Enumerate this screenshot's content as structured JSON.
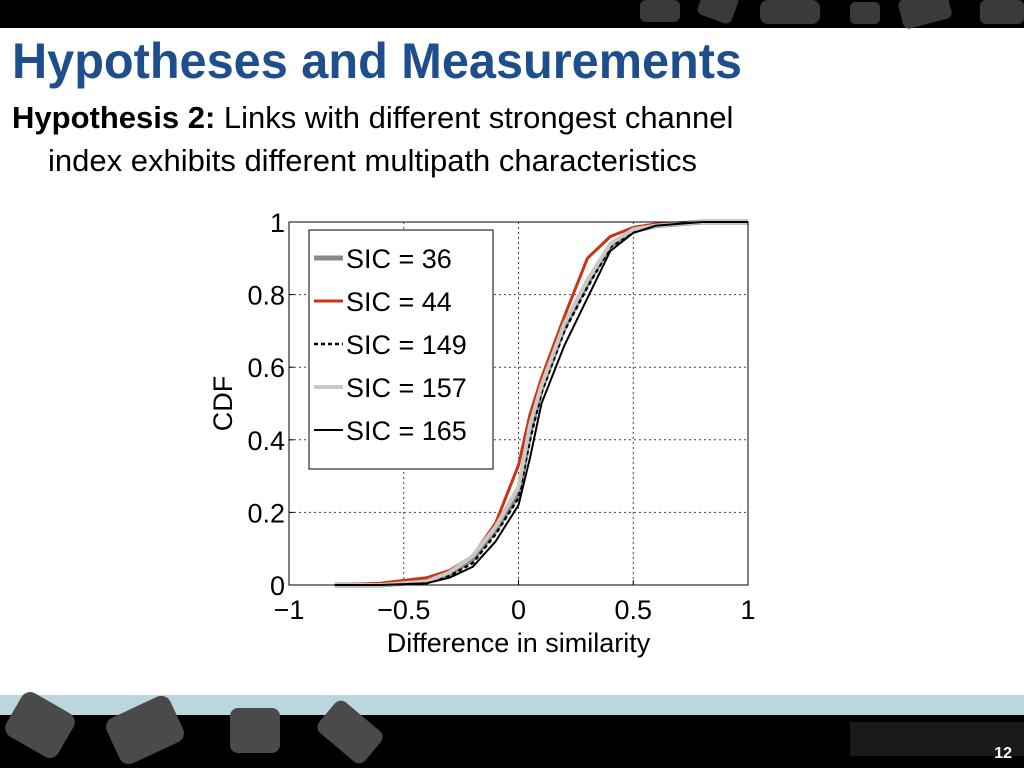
{
  "title": "Hypotheses and Measurements",
  "body": {
    "label": "Hypothesis 2:",
    "lines": [
      "Links with different strongest channel",
      "index exhibits different multipath characteristics"
    ]
  },
  "chart_data": {
    "type": "line",
    "xlabel": "Difference in similarity",
    "ylabel": "CDF",
    "x": [
      -0.8,
      -0.6,
      -0.4,
      -0.3,
      -0.2,
      -0.1,
      0,
      0.05,
      0.1,
      0.2,
      0.3,
      0.4,
      0.5,
      0.6,
      0.8,
      1.0
    ],
    "series": [
      {
        "name": "SIC = 36",
        "color": "#8a8a8a",
        "width": 5,
        "values": [
          0,
          0,
          0.01,
          0.03,
          0.07,
          0.15,
          0.25,
          0.42,
          0.54,
          0.71,
          0.83,
          0.935,
          0.975,
          0.99,
          1,
          1
        ]
      },
      {
        "name": "SIC = 44",
        "color": "#cc3311",
        "width": 3,
        "values": [
          0,
          0.005,
          0.02,
          0.04,
          0.08,
          0.17,
          0.33,
          0.47,
          0.57,
          0.74,
          0.9,
          0.96,
          0.985,
          0.995,
          1,
          1
        ]
      },
      {
        "name": "SIC = 149",
        "color": "#000000",
        "width": 2.5,
        "dash": true,
        "values": [
          0,
          0,
          0.005,
          0.025,
          0.06,
          0.14,
          0.24,
          0.4,
          0.53,
          0.7,
          0.82,
          0.93,
          0.975,
          0.99,
          1,
          1
        ]
      },
      {
        "name": "SIC = 157",
        "color": "#c8c8c8",
        "width": 4,
        "values": [
          0,
          0,
          0.01,
          0.035,
          0.08,
          0.16,
          0.27,
          0.44,
          0.55,
          0.72,
          0.84,
          0.94,
          0.98,
          0.99,
          1,
          1
        ]
      },
      {
        "name": "SIC = 165",
        "color": "#000000",
        "width": 2,
        "values": [
          0,
          0,
          0.005,
          0.02,
          0.05,
          0.12,
          0.22,
          0.35,
          0.5,
          0.66,
          0.79,
          0.92,
          0.97,
          0.99,
          1,
          1
        ]
      }
    ],
    "xlim": [
      -1,
      1
    ],
    "xticks": [
      {
        "value": -1,
        "label": "−1"
      },
      {
        "value": -0.5,
        "label": "−0.5"
      },
      0,
      0.5,
      1
    ],
    "ylim": [
      0,
      1
    ],
    "yticks": [
      0,
      0.2,
      0.4,
      0.6,
      0.8,
      1
    ],
    "grid": true,
    "legend": "upper left"
  },
  "slide_number": 12
}
